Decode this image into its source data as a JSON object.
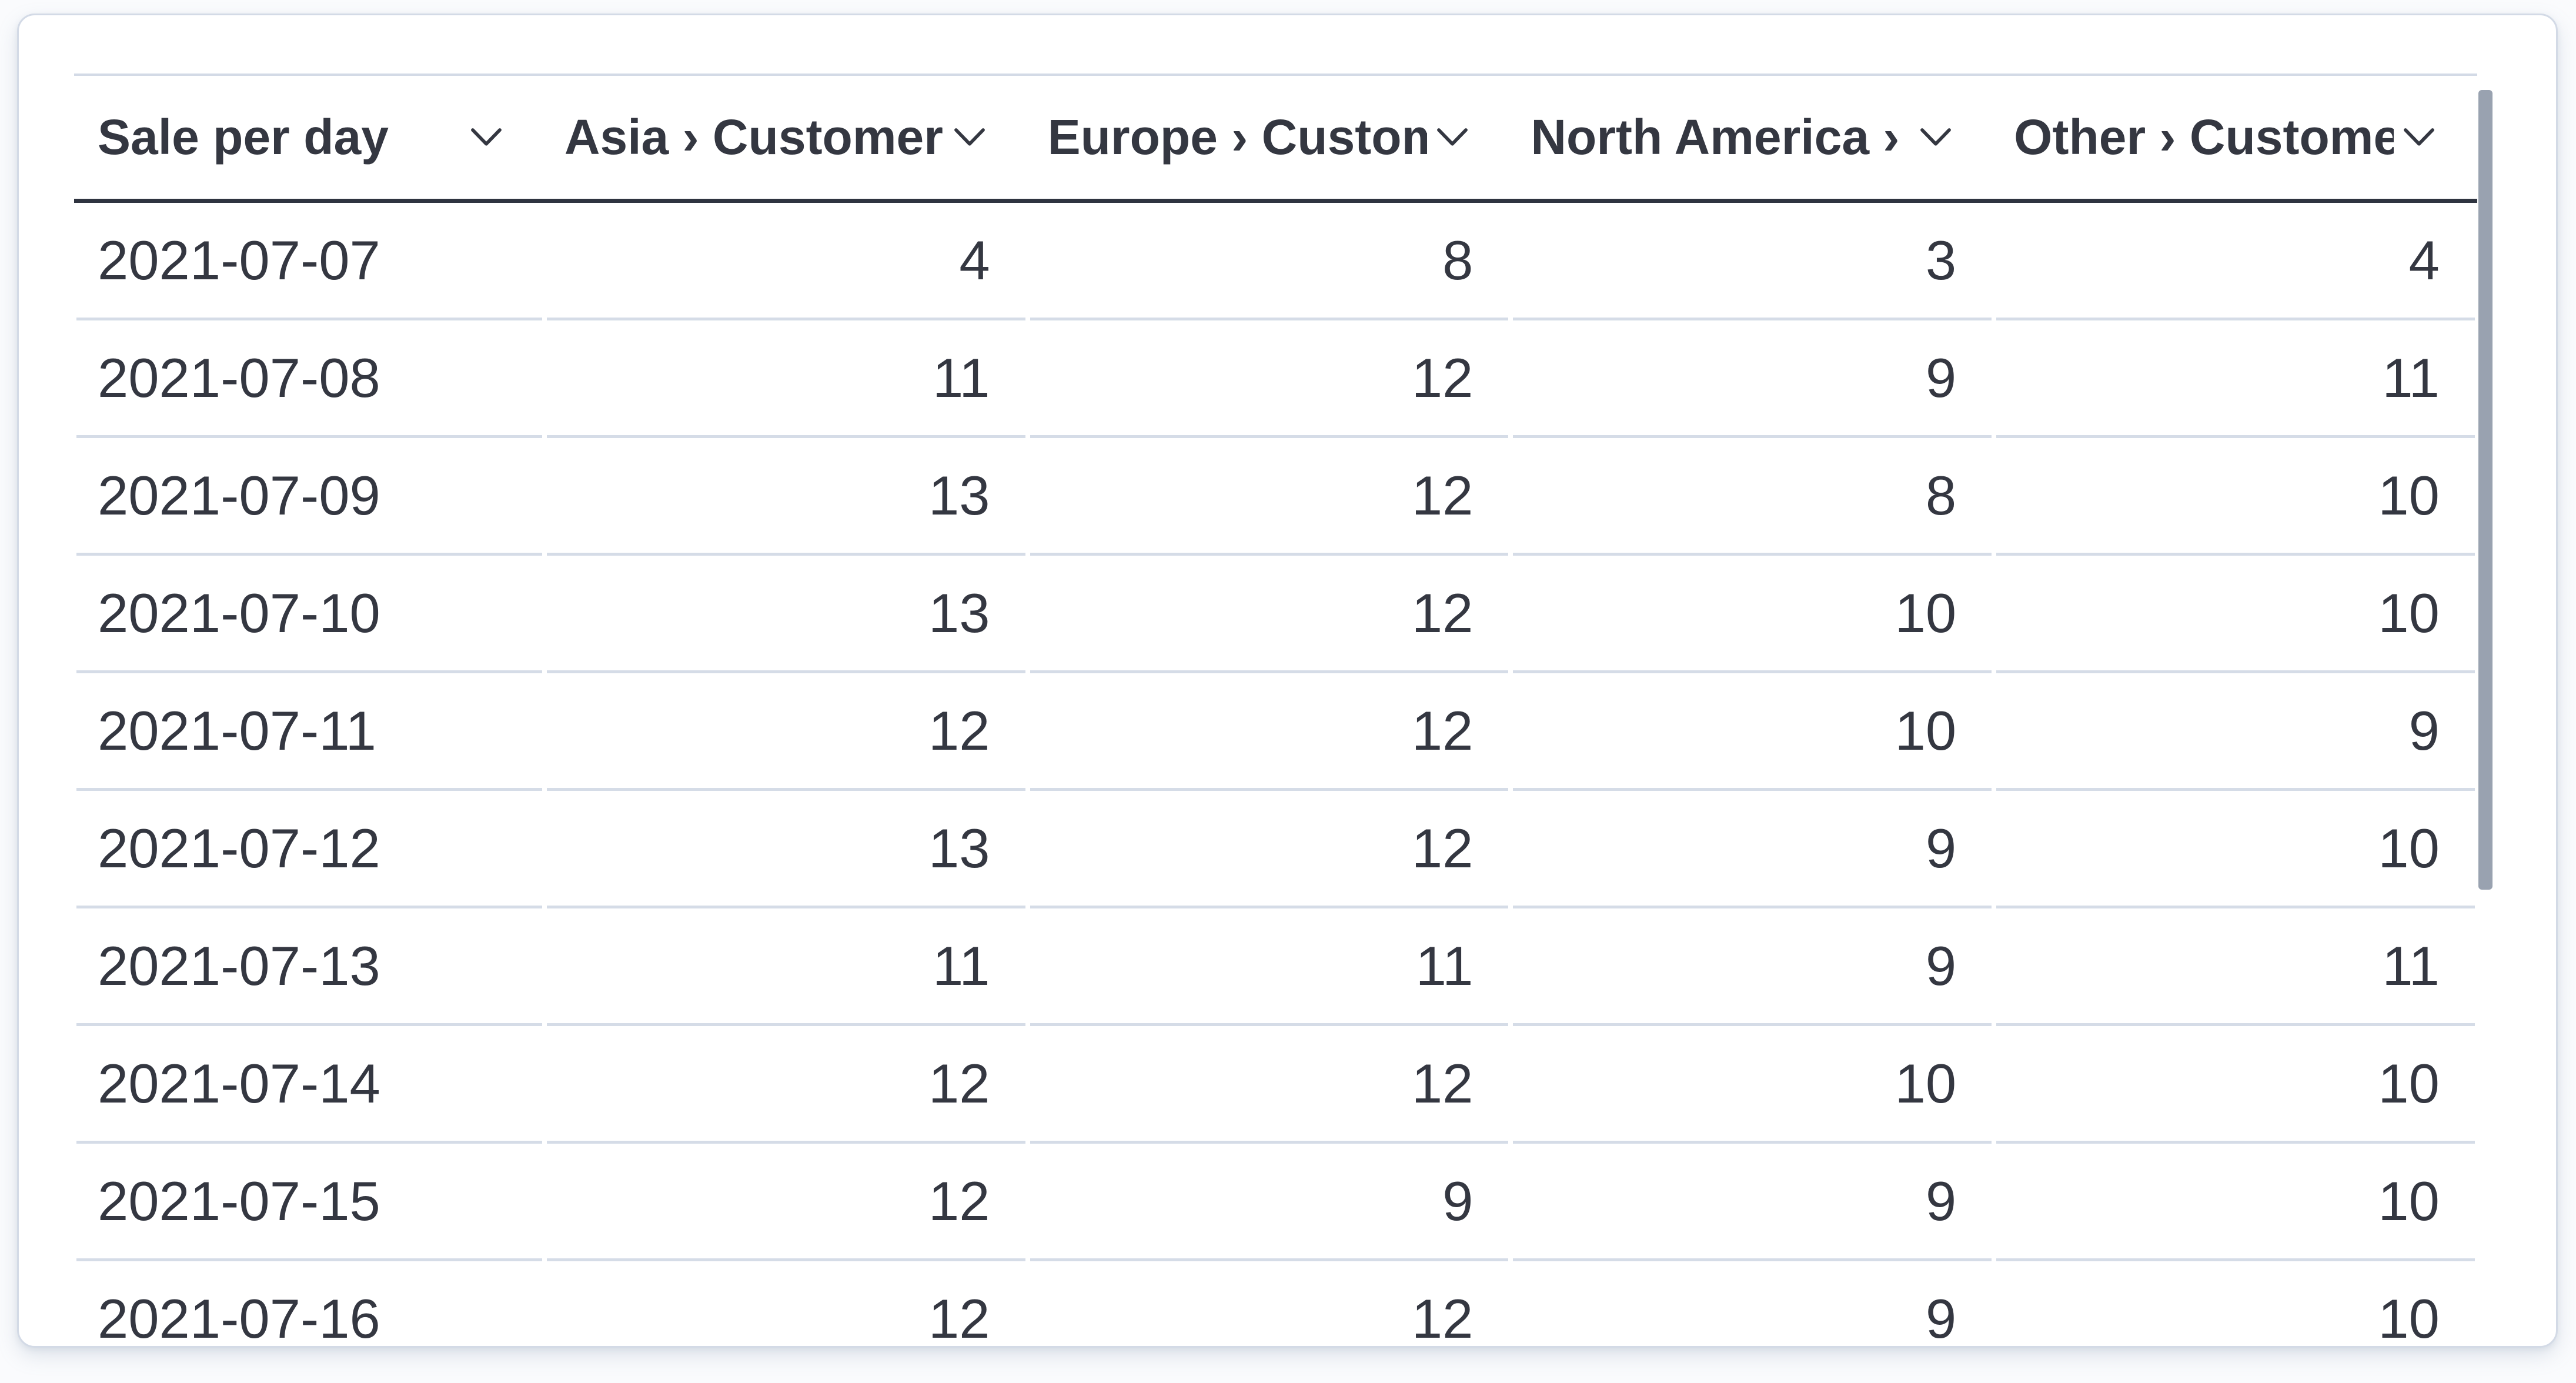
{
  "panel": {
    "background": "#ffffff",
    "border_color": "#d3dae6"
  },
  "table": {
    "columns": [
      {
        "label": "Sale per day",
        "align": "left"
      },
      {
        "label": "Asia › Customers",
        "align": "right"
      },
      {
        "label": "Europe › Customers",
        "align": "right"
      },
      {
        "label": "North America › Customers",
        "align": "right"
      },
      {
        "label": "Other › Customers",
        "align": "right"
      }
    ],
    "rows": [
      [
        "2021-07-07",
        "4",
        "8",
        "3",
        "4"
      ],
      [
        "2021-07-08",
        "11",
        "12",
        "9",
        "11"
      ],
      [
        "2021-07-09",
        "13",
        "12",
        "8",
        "10"
      ],
      [
        "2021-07-10",
        "13",
        "12",
        "10",
        "10"
      ],
      [
        "2021-07-11",
        "12",
        "12",
        "10",
        "9"
      ],
      [
        "2021-07-12",
        "13",
        "12",
        "9",
        "10"
      ],
      [
        "2021-07-13",
        "11",
        "11",
        "9",
        "11"
      ],
      [
        "2021-07-14",
        "12",
        "12",
        "10",
        "10"
      ],
      [
        "2021-07-15",
        "12",
        "9",
        "9",
        "10"
      ],
      [
        "2021-07-16",
        "12",
        "12",
        "9",
        "10"
      ]
    ]
  },
  "icons": {
    "header_dropdown": "chevron-down-icon"
  },
  "colors": {
    "text": "#343741",
    "header_underline": "#2f3440",
    "header_top_rule": "#d3dae6",
    "row_separator": "#d5dce7",
    "card_border": "#d3dae6",
    "scrollbar_thumb": "#99a2b0"
  },
  "scrollbar": {
    "orientation": "vertical",
    "thumb_visible": true
  }
}
